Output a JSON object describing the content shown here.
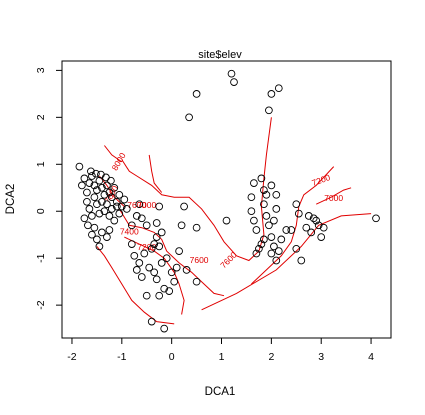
{
  "chart_data": {
    "type": "scatter",
    "title": "site$elev",
    "xlabel": "DCA1",
    "ylabel": "DCA2",
    "xlim": [
      -2.2,
      4.4
    ],
    "ylim": [
      -2.7,
      3.2
    ],
    "xticks": [
      -2,
      -1,
      0,
      1,
      2,
      3,
      4
    ],
    "yticks": [
      -2,
      -1,
      0,
      1,
      2,
      3
    ],
    "grid": false,
    "point_style": "open circle",
    "point_color": "#000000",
    "contour_color": "#e00000",
    "points": [
      [
        -1.85,
        0.95
      ],
      [
        -1.8,
        0.55
      ],
      [
        -1.75,
        0.7
      ],
      [
        -1.7,
        0.4
      ],
      [
        -1.65,
        0.6
      ],
      [
        -1.6,
        0.75
      ],
      [
        -1.55,
        0.55
      ],
      [
        -1.5,
        0.45
      ],
      [
        -1.45,
        0.65
      ],
      [
        -1.4,
        0.5
      ],
      [
        -1.35,
        0.35
      ],
      [
        -1.3,
        0.55
      ],
      [
        -1.25,
        0.4
      ],
      [
        -1.2,
        0.3
      ],
      [
        -1.15,
        0.5
      ],
      [
        -1.1,
        0.2
      ],
      [
        -1.05,
        0.35
      ],
      [
        -1.0,
        0.1
      ],
      [
        -0.95,
        0.25
      ],
      [
        -0.9,
        0.05
      ],
      [
        -1.7,
        0.2
      ],
      [
        -1.65,
        0.05
      ],
      [
        -1.6,
        -0.1
      ],
      [
        -1.55,
        0.3
      ],
      [
        -1.5,
        0.15
      ],
      [
        -1.45,
        -0.05
      ],
      [
        -1.4,
        0.2
      ],
      [
        -1.35,
        0.0
      ],
      [
        -1.3,
        0.15
      ],
      [
        -1.25,
        -0.1
      ],
      [
        -1.2,
        0.05
      ],
      [
        -1.15,
        -0.2
      ],
      [
        -1.1,
        0.1
      ],
      [
        -1.05,
        -0.05
      ],
      [
        -1.75,
        -0.15
      ],
      [
        -1.68,
        -0.3
      ],
      [
        -1.6,
        -0.5
      ],
      [
        -1.55,
        -0.35
      ],
      [
        -1.5,
        -0.6
      ],
      [
        -1.45,
        -0.75
      ],
      [
        -1.4,
        -0.45
      ],
      [
        -1.3,
        -0.55
      ],
      [
        -1.25,
        -0.4
      ],
      [
        -1.62,
        0.85
      ],
      [
        -1.52,
        0.8
      ],
      [
        -1.42,
        0.78
      ],
      [
        -1.32,
        0.72
      ],
      [
        -1.22,
        0.65
      ],
      [
        -0.8,
        -0.3
      ],
      [
        -0.7,
        -0.1
      ],
      [
        -0.65,
        0.15
      ],
      [
        -0.6,
        -0.15
      ],
      [
        -0.5,
        -0.3
      ],
      [
        -0.3,
        -0.25
      ],
      [
        -0.25,
        0.1
      ],
      [
        -0.2,
        -0.45
      ],
      [
        -0.3,
        -0.55
      ],
      [
        -0.35,
        -0.7
      ],
      [
        -0.4,
        -0.8
      ],
      [
        -0.25,
        -0.75
      ],
      [
        -0.8,
        -0.7
      ],
      [
        -0.75,
        -0.95
      ],
      [
        -0.65,
        -1.1
      ],
      [
        -0.55,
        -0.9
      ],
      [
        -0.7,
        -1.25
      ],
      [
        -0.6,
        -1.4
      ],
      [
        -0.45,
        -1.2
      ],
      [
        -0.35,
        -1.3
      ],
      [
        -0.3,
        -1.45
      ],
      [
        -0.2,
        -1.1
      ],
      [
        -0.1,
        -1.0
      ],
      [
        0.0,
        -1.3
      ],
      [
        0.05,
        -1.5
      ],
      [
        -0.05,
        -1.7
      ],
      [
        -0.15,
        -1.65
      ],
      [
        -0.25,
        -1.8
      ],
      [
        0.1,
        -1.2
      ],
      [
        -0.15,
        -2.5
      ],
      [
        -0.5,
        -1.8
      ],
      [
        -0.4,
        -2.35
      ],
      [
        0.15,
        -0.85
      ],
      [
        0.3,
        -1.25
      ],
      [
        0.5,
        -1.5
      ],
      [
        0.2,
        -0.3
      ],
      [
        0.25,
        0.1
      ],
      [
        0.5,
        -0.35
      ],
      [
        0.35,
        2.0
      ],
      [
        0.5,
        2.5
      ],
      [
        1.2,
        2.93
      ],
      [
        1.25,
        2.75
      ],
      [
        1.95,
        2.15
      ],
      [
        2.0,
        2.5
      ],
      [
        2.15,
        2.62
      ],
      [
        1.1,
        -0.2
      ],
      [
        1.6,
        0.3
      ],
      [
        1.65,
        0.6
      ],
      [
        1.6,
        0.0
      ],
      [
        1.65,
        -0.2
      ],
      [
        1.7,
        -0.4
      ],
      [
        1.75,
        -0.8
      ],
      [
        1.7,
        -0.9
      ],
      [
        1.8,
        -0.7
      ],
      [
        1.85,
        0.45
      ],
      [
        1.9,
        0.35
      ],
      [
        1.85,
        0.15
      ],
      [
        1.9,
        -0.1
      ],
      [
        1.8,
        0.7
      ],
      [
        1.95,
        -0.3
      ],
      [
        2.0,
        -0.55
      ],
      [
        2.05,
        -0.75
      ],
      [
        2.0,
        -0.9
      ],
      [
        2.1,
        -1.05
      ],
      [
        2.15,
        -0.85
      ],
      [
        2.2,
        -0.6
      ],
      [
        1.85,
        -0.6
      ],
      [
        2.05,
        -0.2
      ],
      [
        2.1,
        0.05
      ],
      [
        2.1,
        0.35
      ],
      [
        2.0,
        0.55
      ],
      [
        2.3,
        -0.4
      ],
      [
        2.4,
        -0.4
      ],
      [
        2.5,
        -0.8
      ],
      [
        2.6,
        -1.05
      ],
      [
        2.5,
        0.15
      ],
      [
        2.55,
        -0.05
      ],
      [
        2.7,
        -0.35
      ],
      [
        2.8,
        -0.45
      ],
      [
        2.75,
        -0.1
      ],
      [
        2.85,
        -0.15
      ],
      [
        2.9,
        -0.2
      ],
      [
        2.95,
        -0.3
      ],
      [
        3.0,
        -0.55
      ],
      [
        3.05,
        -0.35
      ],
      [
        4.1,
        -0.15
      ]
    ],
    "contours": [
      {
        "level": "7600",
        "label_at": [
          1.15,
          -1.05
        ],
        "segments": [
          [
            [
              -1.0,
              1.1
            ],
            [
              -0.85,
              0.85
            ],
            [
              -0.7,
              0.75
            ],
            [
              -0.4,
              0.55
            ],
            [
              -0.2,
              0.35
            ],
            [
              0.05,
              0.3
            ],
            [
              0.35,
              0.3
            ],
            [
              0.6,
              0.05
            ],
            [
              0.85,
              -0.3
            ],
            [
              1.05,
              -0.65
            ],
            [
              1.3,
              -0.95
            ],
            [
              1.55,
              -1.05
            ],
            [
              1.75,
              -0.85
            ],
            [
              1.85,
              -0.5
            ],
            [
              1.8,
              0.1
            ],
            [
              1.85,
              0.7
            ],
            [
              1.9,
              1.2
            ],
            [
              1.95,
              1.6
            ],
            [
              2.0,
              2.0
            ]
          ]
        ]
      },
      {
        "level": "7400",
        "label_at": [
          -0.85,
          -0.45
        ],
        "segments": [
          [
            [
              -1.05,
              0.05
            ],
            [
              -0.85,
              -0.3
            ],
            [
              -0.6,
              -0.35
            ],
            [
              -0.35,
              -0.45
            ],
            [
              -0.2,
              -0.6
            ],
            [
              -0.1,
              -0.85
            ],
            [
              0.15,
              -1.1
            ],
            [
              0.4,
              -1.3
            ],
            [
              0.6,
              -1.5
            ],
            [
              0.85,
              -1.75
            ],
            [
              1.05,
              -1.8
            ]
          ],
          [
            [
              -0.45,
              1.2
            ],
            [
              -0.4,
              0.85
            ],
            [
              -0.35,
              0.6
            ],
            [
              -0.2,
              0.4
            ]
          ]
        ]
      },
      {
        "level": "7200",
        "label_at": [
          -0.5,
          -0.78
        ],
        "segments": [
          [
            [
              -0.95,
              -0.55
            ],
            [
              -0.75,
              -0.65
            ],
            [
              -0.55,
              -0.75
            ],
            [
              -0.35,
              -0.85
            ],
            [
              -0.15,
              -1.0
            ],
            [
              0.05,
              -1.3
            ],
            [
              0.15,
              -1.55
            ],
            [
              0.25,
              -1.9
            ],
            [
              0.2,
              -2.2
            ]
          ],
          [
            [
              1.6,
              -1.55
            ],
            [
              1.9,
              -1.25
            ],
            [
              2.2,
              -0.95
            ],
            [
              2.4,
              -0.65
            ],
            [
              2.5,
              -0.3
            ],
            [
              2.55,
              0.1
            ],
            [
              2.65,
              0.35
            ],
            [
              2.9,
              0.55
            ],
            [
              3.25,
              0.95
            ]
          ]
        ]
      },
      {
        "level": "7000",
        "label_at": [
          3.25,
          0.27
        ],
        "segments": [
          [
            [
              -1.5,
              -0.75
            ],
            [
              -1.35,
              -0.95
            ],
            [
              -1.2,
              -1.2
            ],
            [
              -1.0,
              -1.55
            ],
            [
              -0.8,
              -1.9
            ],
            [
              -0.55,
              -2.15
            ],
            [
              -0.3,
              -2.35
            ],
            [
              0.05,
              -2.4
            ]
          ],
          [
            [
              0.6,
              -2.1
            ],
            [
              1.3,
              -1.75
            ],
            [
              2.1,
              -1.25
            ],
            [
              2.6,
              -0.75
            ],
            [
              2.95,
              -0.3
            ],
            [
              3.4,
              -0.1
            ],
            [
              4.0,
              -0.05
            ]
          ],
          [
            [
              2.9,
              0.15
            ],
            [
              3.2,
              0.3
            ],
            [
              3.45,
              0.45
            ],
            [
              3.6,
              0.5
            ]
          ]
        ]
      },
      {
        "level": "7800",
        "label_at": [
          -1.2,
          0.35
        ],
        "segments": [
          [
            [
              -1.45,
              0.75
            ],
            [
              -1.3,
              0.55
            ],
            [
              -1.15,
              0.3
            ],
            [
              -0.95,
              0.1
            ]
          ]
        ]
      },
      {
        "level": "8000",
        "label_at": [
          -1.05,
          1.05
        ],
        "segments": [
          [
            [
              -1.35,
              1.4
            ],
            [
              -1.2,
              1.2
            ],
            [
              -1.0,
              1.05
            ]
          ]
        ]
      }
    ],
    "contour_labels": [
      {
        "text": "7600",
        "x": 1.15,
        "y": -1.05,
        "angle": -45
      },
      {
        "text": "7600",
        "x": 0.55,
        "y": -1.05,
        "angle": 0
      },
      {
        "text": "7600",
        "x": -0.7,
        "y": 0.12,
        "angle": 0
      },
      {
        "text": "7400",
        "x": -0.85,
        "y": -0.45,
        "angle": 0
      },
      {
        "text": "7200",
        "x": -0.5,
        "y": -0.78,
        "angle": 0
      },
      {
        "text": "7200",
        "x": 3.0,
        "y": 0.65,
        "angle": -20
      },
      {
        "text": "7000",
        "x": 3.25,
        "y": 0.27,
        "angle": 0
      },
      {
        "text": "7000",
        "x": -0.5,
        "y": 0.12,
        "angle": 0
      },
      {
        "text": "7800",
        "x": -1.2,
        "y": 0.35,
        "angle": -60
      },
      {
        "text": "8000",
        "x": -1.05,
        "y": 1.05,
        "angle": -60
      }
    ]
  }
}
